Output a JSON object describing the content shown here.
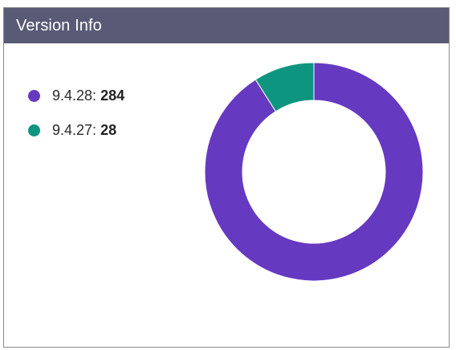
{
  "widget": {
    "title": "Version Info"
  },
  "colors": {
    "header_bg": "#585a76",
    "series": [
      "#6639c1",
      "#0e9580"
    ]
  },
  "chart_data": {
    "type": "pie",
    "variant": "donut",
    "categories": [
      "9.4.28",
      "9.4.27"
    ],
    "values": [
      284,
      28
    ],
    "legend_placement": "left",
    "legend": [
      {
        "label": "9.4.28",
        "value": "284"
      },
      {
        "label": "9.4.27",
        "value": "28"
      }
    ]
  }
}
